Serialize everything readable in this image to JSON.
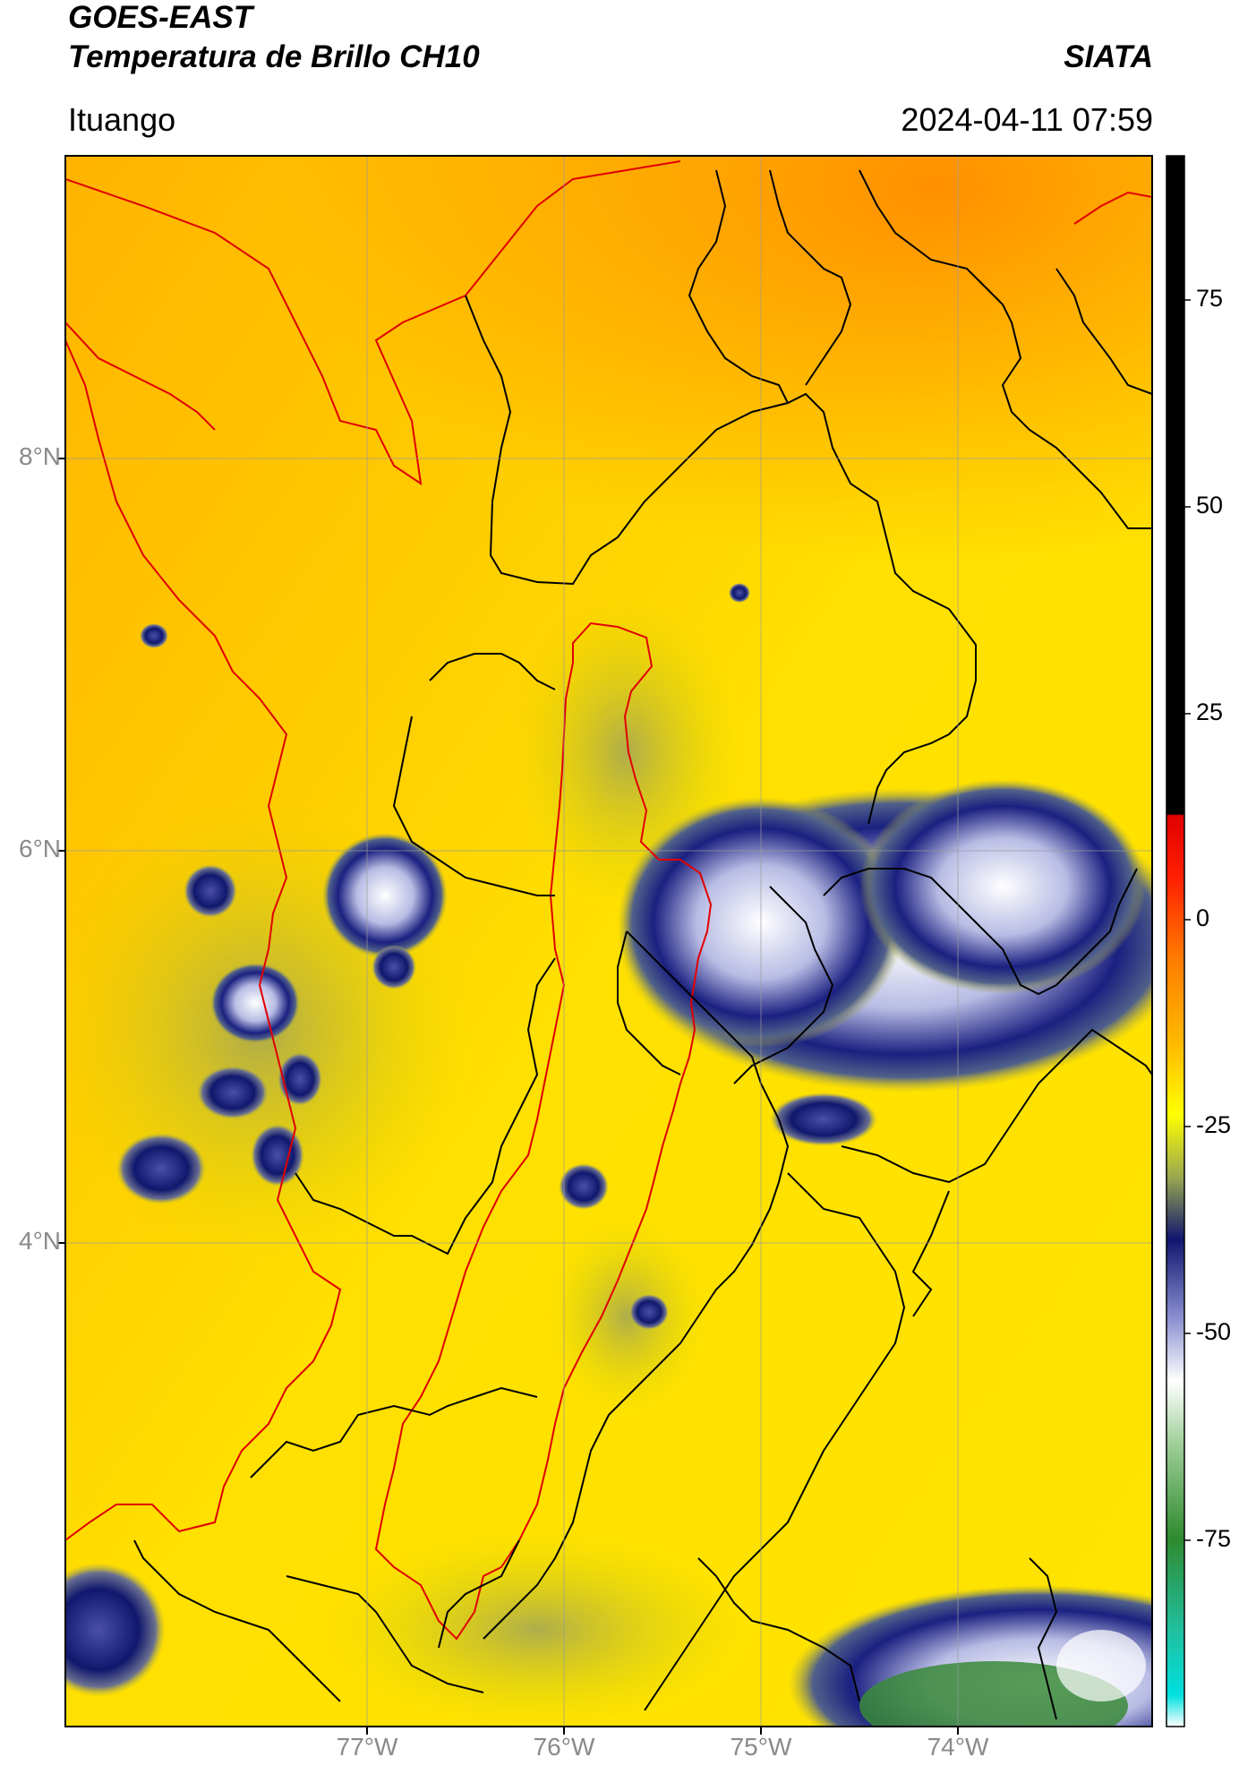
{
  "header": {
    "satellite": "GOES-EAST",
    "product": "Temperatura de Brillo CH10",
    "brand": "SIATA",
    "location": "Ituango",
    "timestamp": "2024-04-11 07:59"
  },
  "map": {
    "lat_ticks": [
      "8°N",
      "6°N",
      "4°N"
    ],
    "lon_ticks": [
      "77°W",
      "76°W",
      "75°W",
      "74°W"
    ],
    "background_color": "#ffd400",
    "boundary_colors": {
      "national": "#000000",
      "regional": "#e00000"
    }
  },
  "colorbar": {
    "ticks": [
      "75",
      "50",
      "25",
      "0",
      "-25",
      "-50",
      "-75"
    ],
    "palette": [
      "#00e0e0",
      "#1a9e70",
      "#2f8a2f",
      "#a8cfa0",
      "#ffffff",
      "#7a82c8",
      "#10166e",
      "#d8d800",
      "#ffff00",
      "#ffa000",
      "#ff4500",
      "#e00000",
      "#000000"
    ]
  }
}
